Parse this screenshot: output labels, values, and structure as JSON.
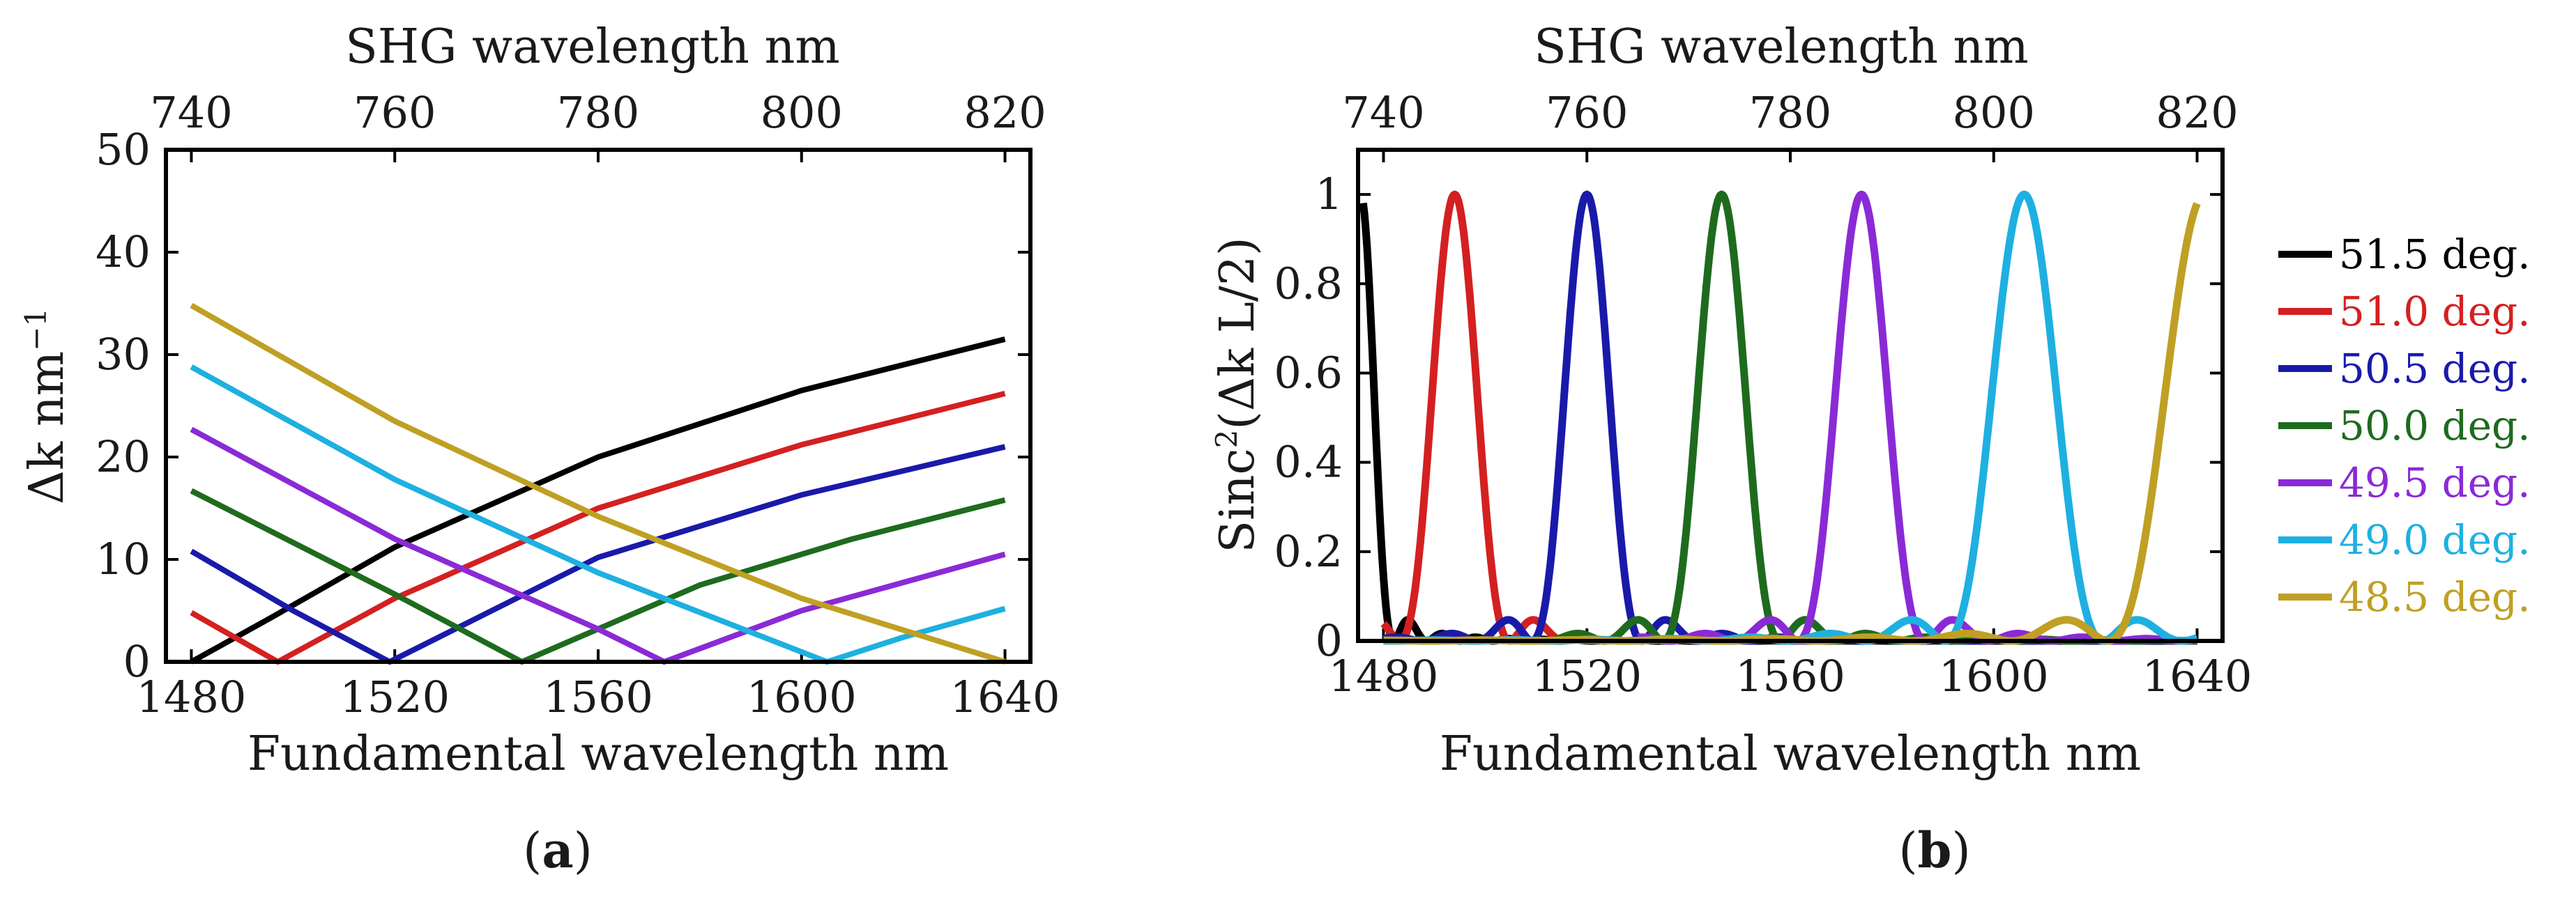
{
  "chart_data": [
    {
      "id": "a",
      "type": "line",
      "panel_label_open": "(",
      "panel_label_letter": "a",
      "panel_label_close": ")",
      "xlabel": "Fundamental wavelength nm",
      "x2label": "SHG wavelength nm",
      "ylabel_main": "Δk nm",
      "ylabel_sup": "−1",
      "xlim": [
        1475,
        1645
      ],
      "ylim": [
        0,
        50
      ],
      "x2lim": [
        737.5,
        822.5
      ],
      "xticks": [
        1480,
        1520,
        1560,
        1600,
        1640
      ],
      "xtick_labels": [
        "1480",
        "1520",
        "1560",
        "1600",
        "1640"
      ],
      "yticks": [
        0,
        10,
        20,
        30,
        40,
        50
      ],
      "ytick_labels": [
        "0",
        "10",
        "20",
        "30",
        "40",
        "50"
      ],
      "x2ticks": [
        740,
        760,
        780,
        800,
        820
      ],
      "x2tick_labels": [
        "740",
        "760",
        "780",
        "800",
        "820"
      ],
      "series": [
        {
          "name": "51.5 deg.",
          "color": "#000000",
          "zero": 1480,
          "x": [
            1480,
            1496,
            1520,
            1560,
            1600,
            1640
          ],
          "y": [
            0,
            4.4,
            11.2,
            20.0,
            26.5,
            31.5
          ]
        },
        {
          "name": "51.0 deg.",
          "color": "#d42020",
          "zero": 1497,
          "x": [
            1480,
            1497,
            1520,
            1560,
            1600,
            1640
          ],
          "y": [
            4.8,
            0,
            6.2,
            15.0,
            21.2,
            26.2
          ]
        },
        {
          "name": "50.5 deg.",
          "color": "#1a1aaa",
          "zero": 1519,
          "x": [
            1480,
            1500,
            1519,
            1560,
            1600,
            1640
          ],
          "y": [
            10.8,
            5.0,
            0,
            10.2,
            16.3,
            21.0
          ]
        },
        {
          "name": "50.0 deg.",
          "color": "#1e6b1e",
          "zero": 1545,
          "x": [
            1480,
            1520,
            1545,
            1580,
            1610,
            1640
          ],
          "y": [
            16.7,
            6.6,
            0,
            7.5,
            12.0,
            15.8
          ]
        },
        {
          "name": "49.5 deg.",
          "color": "#8a2ad6",
          "zero": 1573,
          "x": [
            1480,
            1520,
            1560,
            1573,
            1600,
            1640
          ],
          "y": [
            22.7,
            12.0,
            3.2,
            0,
            5.0,
            10.5
          ]
        },
        {
          "name": "49.0 deg.",
          "color": "#1eb0e0",
          "zero": 1605,
          "x": [
            1480,
            1520,
            1560,
            1605,
            1620,
            1640
          ],
          "y": [
            28.8,
            17.8,
            8.7,
            0,
            2.4,
            5.2
          ]
        },
        {
          "name": "48.5 deg.",
          "color": "#bfa024",
          "zero": 1640,
          "x": [
            1480,
            1520,
            1560,
            1600,
            1640
          ],
          "y": [
            34.8,
            23.5,
            14.2,
            6.2,
            0
          ]
        }
      ]
    },
    {
      "id": "b",
      "type": "line",
      "panel_label_open": "(",
      "panel_label_letter": "b",
      "panel_label_close": ")",
      "xlabel": "Fundamental wavelength nm",
      "x2label": "SHG wavelength nm",
      "ylabel_pre": "Sinc",
      "ylabel_sup": "2",
      "ylabel_post": "(Δk L/2)",
      "xlim": [
        1475,
        1645
      ],
      "ylim": [
        0,
        1.1
      ],
      "x2lim": [
        737.5,
        822.5
      ],
      "xticks": [
        1480,
        1520,
        1560,
        1600,
        1640
      ],
      "xtick_labels": [
        "1480",
        "1520",
        "1560",
        "1600",
        "1640"
      ],
      "yticks": [
        0,
        0.2,
        0.4,
        0.6,
        0.8,
        1.0
      ],
      "ytick_labels": [
        "0",
        "0.2",
        "0.4",
        "0.6",
        "0.8",
        "1"
      ],
      "x2ticks": [
        740,
        760,
        780,
        800,
        820
      ],
      "x2tick_labels": [
        "740",
        "760",
        "780",
        "800",
        "820"
      ],
      "series": [
        {
          "name": "51.5 deg.",
          "color": "#000000",
          "peak_x": 1475.5,
          "halfwidth": 6.5,
          "x_start": 1476.0,
          "x_end": 1640
        },
        {
          "name": "51.0 deg.",
          "color": "#d42020",
          "peak_x": 1494,
          "halfwidth": 10.8,
          "x_start": 1480,
          "x_end": 1515
        },
        {
          "name": "50.5 deg.",
          "color": "#1a1aaa",
          "peak_x": 1520,
          "halfwidth": 10.8,
          "x_start": 1480,
          "x_end": 1640
        },
        {
          "name": "50.0 deg.",
          "color": "#1e6b1e",
          "peak_x": 1546.5,
          "halfwidth": 11.5,
          "x_start": 1510,
          "x_end": 1640
        },
        {
          "name": "49.5 deg.",
          "color": "#8a2ad6",
          "peak_x": 1574,
          "halfwidth": 12.5,
          "x_start": 1530,
          "x_end": 1640
        },
        {
          "name": "49.0 deg.",
          "color": "#1eb0e0",
          "peak_x": 1606,
          "halfwidth": 15.5,
          "x_start": 1480,
          "x_end": 1640
        },
        {
          "name": "48.5 deg.",
          "color": "#bfa024",
          "peak_x": 1641.5,
          "halfwidth": 19.0,
          "x_start": 1480,
          "x_end": 1640
        }
      ]
    }
  ]
}
